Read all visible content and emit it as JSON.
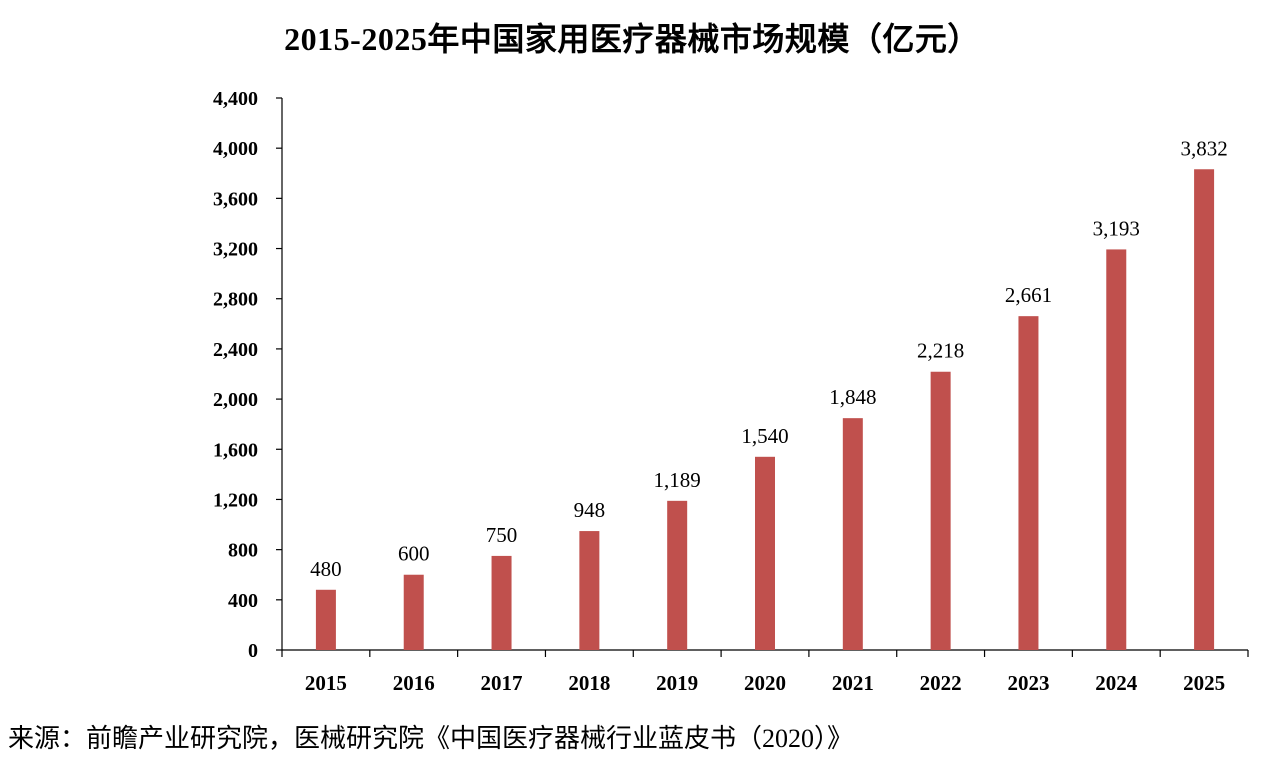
{
  "chart_data": {
    "type": "bar",
    "title": "2015-2025年中国家用医疗器械市场规模（亿元）",
    "categories": [
      "2015",
      "2016",
      "2017",
      "2018",
      "2019",
      "2020",
      "2021",
      "2022",
      "2023",
      "2024",
      "2025"
    ],
    "series": [
      {
        "values": [
          480,
          600,
          750,
          948,
          1189,
          1540,
          1848,
          2218,
          2661,
          3193,
          3832
        ],
        "color": "#C0504D"
      }
    ],
    "data_labels": [
      "480",
      "600",
      "750",
      "948",
      "1,189",
      "1,540",
      "1,848",
      "2,218",
      "2,661",
      "3,193",
      "3,832"
    ],
    "ylim": [
      0,
      4400
    ],
    "yticks": [
      0,
      400,
      800,
      1200,
      1600,
      2000,
      2400,
      2800,
      3200,
      3600,
      4000,
      4400
    ],
    "ytick_labels": [
      "0",
      "400",
      "800",
      "1,200",
      "1,600",
      "2,000",
      "2,400",
      "2,800",
      "3,200",
      "3,600",
      "4,000",
      "4,400"
    ],
    "xlabel": "",
    "ylabel": "",
    "grid": false,
    "legend": "none"
  },
  "source": "来源：前瞻产业研究院，医械研究院《中国医疗器械行业蓝皮书（2020）》"
}
